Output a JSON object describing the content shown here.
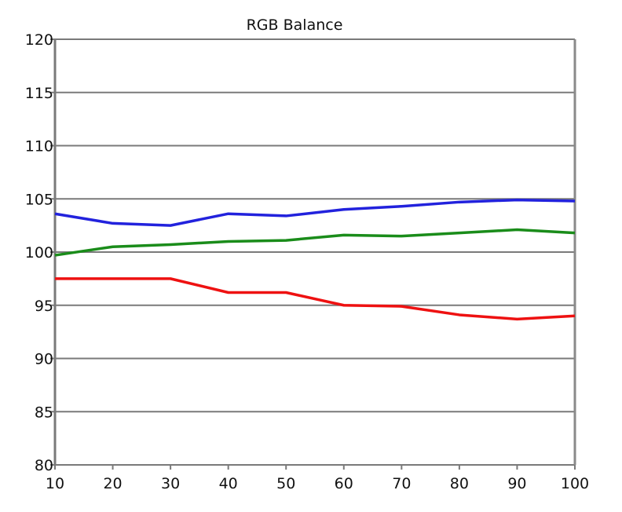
{
  "chart_data": {
    "type": "line",
    "title": "RGB Balance",
    "xlabel": "",
    "ylabel": "",
    "x": [
      10,
      20,
      30,
      40,
      50,
      60,
      70,
      80,
      90,
      100
    ],
    "xlim": [
      10,
      100
    ],
    "ylim": [
      80,
      120
    ],
    "xticks": [
      "10",
      "20",
      "30",
      "40",
      "50",
      "60",
      "70",
      "80",
      "90",
      "100"
    ],
    "yticks": [
      "80",
      "85",
      "90",
      "95",
      "100",
      "105",
      "110",
      "115",
      "120"
    ],
    "grid": "horizontal",
    "legend": "none",
    "series": [
      {
        "color": "#2222dd",
        "values": [
          103.6,
          102.7,
          102.5,
          103.6,
          103.4,
          104.0,
          104.3,
          104.7,
          104.9,
          104.8
        ]
      },
      {
        "color": "#1a8c1a",
        "values": [
          99.7,
          100.5,
          100.7,
          101.0,
          101.1,
          101.6,
          101.5,
          101.8,
          102.1,
          101.8
        ]
      },
      {
        "color": "#ee1111",
        "values": [
          97.5,
          97.5,
          97.5,
          96.2,
          96.2,
          95.0,
          94.9,
          94.1,
          93.7,
          94.0
        ]
      }
    ]
  }
}
